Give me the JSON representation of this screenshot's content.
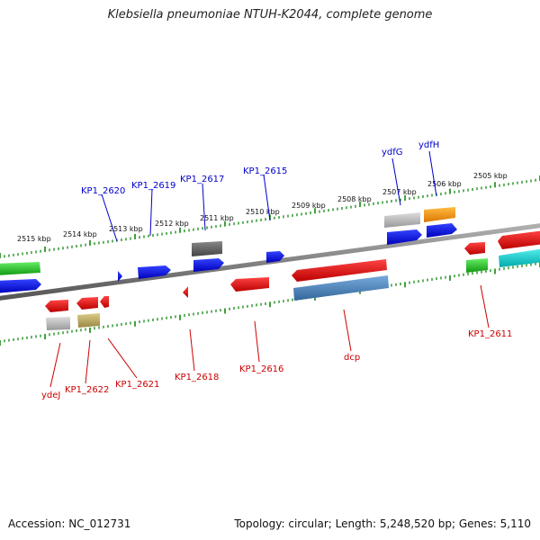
{
  "title": "Klebsiella pneumoniae NTUH-K2044, complete genome",
  "footer": {
    "accession": "Accession: NC_012731",
    "summary": "Topology: circular; Length: 5,248,520 bp; Genes: 5,110"
  },
  "colors": {
    "backbone": "#808080",
    "tick": "#118811",
    "forward_label": "#0000cc",
    "reverse_label": "#cc0000"
  },
  "scale_labels": [
    "2515 kbp",
    "2514 kbp",
    "2513 kbp",
    "2512 kbp",
    "2511 kbp",
    "2510 kbp",
    "2509 kbp",
    "2508 kbp",
    "2507 kbp",
    "2506 kbp",
    "2505 kbp"
  ],
  "forward_gene_labels": [
    "KP1_2620",
    "KP1_2619",
    "KP1_2617",
    "KP1_2615",
    "ydfG",
    "ydfH"
  ],
  "reverse_gene_labels": [
    "ydeJ",
    "KP1_2622",
    "KP1_2621",
    "KP1_2618",
    "KP1_2616",
    "dcp",
    "KP1_2611"
  ]
}
